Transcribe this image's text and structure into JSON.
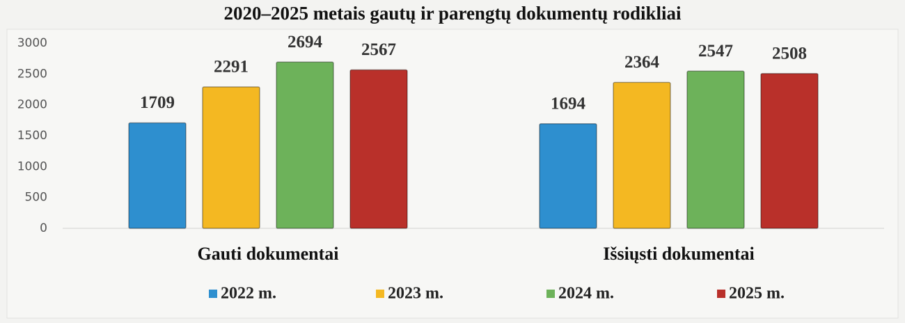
{
  "chart_data": {
    "type": "bar",
    "title": "2020–2025 metais gautų ir parengtų dokumentų rodikliai",
    "categories": [
      "Gauti dokumentai",
      "Išsiųsti dokumentai"
    ],
    "series": [
      {
        "name": "2022 m.",
        "color": "#2e8fcf",
        "values": [
          1709,
          1694
        ]
      },
      {
        "name": "2023 m.",
        "color": "#f4b822",
        "values": [
          2291,
          2364
        ]
      },
      {
        "name": "2024 m.",
        "color": "#6db25a",
        "values": [
          2694,
          2547
        ]
      },
      {
        "name": "2025 m.",
        "color": "#b9302a",
        "values": [
          2567,
          2508
        ]
      }
    ],
    "ylim": [
      0,
      3000
    ],
    "yticks": [
      0,
      500,
      1000,
      1500,
      2000,
      2500,
      3000
    ],
    "grid": false,
    "legend": "bottom"
  }
}
